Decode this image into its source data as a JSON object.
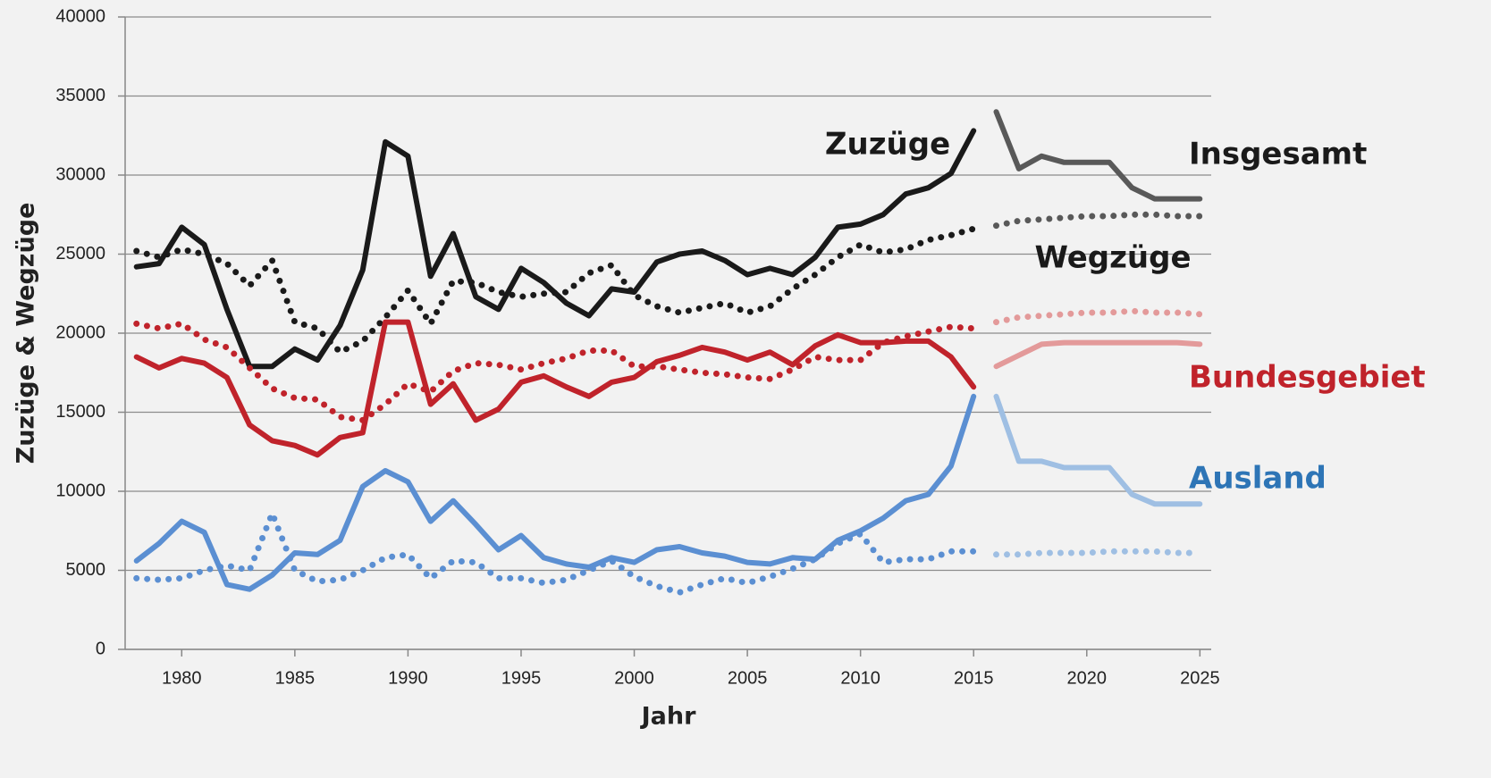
{
  "chart_data": {
    "type": "line",
    "x_label": "Jahr",
    "y_label": "Zuzüge & Wegzüge",
    "x": [
      1978,
      1979,
      1980,
      1981,
      1982,
      1983,
      1984,
      1985,
      1986,
      1987,
      1988,
      1989,
      1990,
      1991,
      1992,
      1993,
      1994,
      1995,
      1996,
      1997,
      1998,
      1999,
      2000,
      2001,
      2002,
      2003,
      2004,
      2005,
      2006,
      2007,
      2008,
      2009,
      2010,
      2011,
      2012,
      2013,
      2014,
      2015,
      2016,
      2017,
      2018,
      2019,
      2020,
      2021,
      2022,
      2023,
      2024,
      2025
    ],
    "xlim": [
      1977.5,
      2025.5
    ],
    "xticks": [
      1980,
      1985,
      1990,
      1995,
      2000,
      2005,
      2010,
      2015,
      2020,
      2025
    ],
    "ylim": [
      0,
      40000
    ],
    "yticks": [
      0,
      5000,
      10000,
      15000,
      20000,
      25000,
      30000,
      35000,
      40000
    ],
    "grid": true,
    "series": [
      {
        "color": "#1a1a1a",
        "style": "solid",
        "values": [
          24200,
          24400,
          26700,
          25600,
          21500,
          17900,
          17900,
          19000,
          18300,
          20500,
          24000,
          32100,
          31200,
          23600,
          26300,
          22300,
          21500,
          24100,
          23200,
          21900,
          21100,
          22800,
          22600,
          24500,
          25000,
          25200,
          24600,
          23700,
          24100,
          23700,
          24800,
          26700,
          26900,
          27500,
          28800,
          29200,
          30100,
          32800,
          null,
          null,
          null,
          null,
          null,
          null,
          null,
          null,
          null,
          null
        ]
      },
      {
        "color": "#1a1a1a",
        "style": "dotted",
        "values": [
          25200,
          24800,
          25300,
          25000,
          24400,
          23000,
          24600,
          20700,
          20300,
          18800,
          19500,
          21000,
          22700,
          20600,
          23300,
          23200,
          22600,
          22300,
          22500,
          22600,
          23800,
          24300,
          22400,
          21700,
          21300,
          21600,
          21900,
          21300,
          21700,
          22800,
          23700,
          24800,
          25600,
          25100,
          25300,
          25900,
          26200,
          26600,
          null,
          null,
          null,
          null,
          null,
          null,
          null,
          null,
          null,
          null
        ]
      },
      {
        "color": "#c0232b",
        "style": "solid",
        "values": [
          18500,
          17800,
          18400,
          18100,
          17200,
          14200,
          13200,
          12900,
          12300,
          13400,
          13700,
          20700,
          20700,
          15500,
          16800,
          14500,
          15200,
          16900,
          17300,
          16600,
          16000,
          16900,
          17200,
          18200,
          18600,
          19100,
          18800,
          18300,
          18800,
          18000,
          19200,
          19900,
          19400,
          19400,
          19500,
          19500,
          18500,
          16600,
          null,
          null,
          null,
          null,
          null,
          null,
          null,
          null,
          null,
          null
        ]
      },
      {
        "color": "#c0232b",
        "style": "dotted",
        "values": [
          20600,
          20300,
          20600,
          19600,
          19100,
          17800,
          16500,
          15900,
          15800,
          14700,
          14500,
          15500,
          16800,
          16300,
          17600,
          18100,
          18000,
          17700,
          18100,
          18400,
          18900,
          18900,
          17900,
          17900,
          17700,
          17500,
          17400,
          17200,
          17100,
          17700,
          18500,
          18300,
          18300,
          19400,
          19800,
          20100,
          20400,
          20300,
          null,
          null,
          null,
          null,
          null,
          null,
          null,
          null,
          null,
          null
        ]
      },
      {
        "color": "#5b8fd2",
        "style": "solid",
        "values": [
          5600,
          6700,
          8100,
          7400,
          4100,
          3800,
          4700,
          6100,
          6000,
          6900,
          10300,
          11300,
          10600,
          8100,
          9400,
          7900,
          6300,
          7200,
          5800,
          5400,
          5200,
          5800,
          5500,
          6300,
          6500,
          6100,
          5900,
          5500,
          5400,
          5800,
          5700,
          6900,
          7500,
          8300,
          9400,
          9800,
          11600,
          16000,
          null,
          null,
          null,
          null,
          null,
          null,
          null,
          null,
          null,
          null
        ]
      },
      {
        "color": "#5b8fd2",
        "style": "dotted",
        "values": [
          4500,
          4400,
          4500,
          5000,
          5300,
          5000,
          8600,
          5000,
          4300,
          4400,
          5000,
          5800,
          6000,
          4500,
          5600,
          5500,
          4500,
          4500,
          4200,
          4400,
          5000,
          5600,
          4600,
          4000,
          3600,
          4100,
          4500,
          4200,
          4600,
          5100,
          5700,
          6700,
          7300,
          5500,
          5700,
          5700,
          6200,
          6200,
          null,
          null,
          null,
          null,
          null,
          null,
          null,
          null,
          null,
          null
        ]
      },
      {
        "color": "#595959",
        "style": "solid",
        "values": [
          null,
          null,
          null,
          null,
          null,
          null,
          null,
          null,
          null,
          null,
          null,
          null,
          null,
          null,
          null,
          null,
          null,
          null,
          null,
          null,
          null,
          null,
          null,
          null,
          null,
          null,
          null,
          null,
          null,
          null,
          null,
          null,
          null,
          null,
          null,
          null,
          null,
          null,
          34000,
          30400,
          31200,
          30800,
          30800,
          30800,
          29200,
          28500,
          28500,
          28500
        ]
      },
      {
        "color": "#595959",
        "style": "dotted",
        "values": [
          null,
          null,
          null,
          null,
          null,
          null,
          null,
          null,
          null,
          null,
          null,
          null,
          null,
          null,
          null,
          null,
          null,
          null,
          null,
          null,
          null,
          null,
          null,
          null,
          null,
          null,
          null,
          null,
          null,
          null,
          null,
          null,
          null,
          null,
          null,
          null,
          null,
          null,
          26800,
          27100,
          27200,
          27300,
          27400,
          27400,
          27500,
          27500,
          27400,
          27400
        ]
      },
      {
        "color": "#e39a9a",
        "style": "solid",
        "values": [
          null,
          null,
          null,
          null,
          null,
          null,
          null,
          null,
          null,
          null,
          null,
          null,
          null,
          null,
          null,
          null,
          null,
          null,
          null,
          null,
          null,
          null,
          null,
          null,
          null,
          null,
          null,
          null,
          null,
          null,
          null,
          null,
          null,
          null,
          null,
          null,
          null,
          null,
          17900,
          18600,
          19300,
          19400,
          19400,
          19400,
          19400,
          19400,
          19400,
          19300
        ]
      },
      {
        "color": "#e39a9a",
        "style": "dotted",
        "values": [
          null,
          null,
          null,
          null,
          null,
          null,
          null,
          null,
          null,
          null,
          null,
          null,
          null,
          null,
          null,
          null,
          null,
          null,
          null,
          null,
          null,
          null,
          null,
          null,
          null,
          null,
          null,
          null,
          null,
          null,
          null,
          null,
          null,
          null,
          null,
          null,
          null,
          null,
          20700,
          21000,
          21100,
          21200,
          21300,
          21300,
          21400,
          21300,
          21300,
          21200
        ]
      },
      {
        "color": "#9fbfe3",
        "style": "solid",
        "values": [
          null,
          null,
          null,
          null,
          null,
          null,
          null,
          null,
          null,
          null,
          null,
          null,
          null,
          null,
          null,
          null,
          null,
          null,
          null,
          null,
          null,
          null,
          null,
          null,
          null,
          null,
          null,
          null,
          null,
          null,
          null,
          null,
          null,
          null,
          null,
          null,
          null,
          null,
          16000,
          11900,
          11900,
          11500,
          11500,
          11500,
          9800,
          9200,
          9200,
          9200
        ]
      },
      {
        "color": "#9fbfe3",
        "style": "dotted",
        "values": [
          null,
          null,
          null,
          null,
          null,
          null,
          null,
          null,
          null,
          null,
          null,
          null,
          null,
          null,
          null,
          null,
          null,
          null,
          null,
          null,
          null,
          null,
          null,
          null,
          null,
          null,
          null,
          null,
          null,
          null,
          null,
          null,
          null,
          null,
          null,
          null,
          null,
          null,
          6000,
          6000,
          6100,
          6100,
          6100,
          6200,
          6200,
          6200,
          6100,
          6100
        ]
      }
    ],
    "annotations": [
      {
        "text": "Zuzüge",
        "color": "#1a1a1a"
      },
      {
        "text": "Wegzüge",
        "color": "#1a1a1a"
      },
      {
        "text": "Insgesamt",
        "color": "#1a1a1a"
      },
      {
        "text": "Bundesgebiet",
        "color": "#c0232b"
      },
      {
        "text": "Ausland",
        "color": "#2e75b6"
      }
    ]
  }
}
